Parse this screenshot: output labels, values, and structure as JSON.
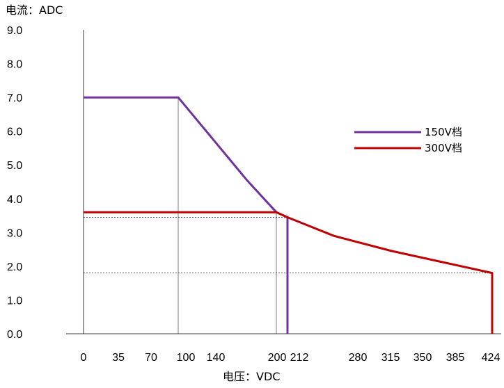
{
  "chart_data": {
    "type": "line",
    "ylabel": "电流：ADC",
    "xlabel": "电压：VDC",
    "xlim": [
      0,
      424
    ],
    "ylim": [
      0,
      9
    ],
    "x_ticks": [
      "0",
      "35",
      "70",
      "100",
      "140",
      "200",
      "212",
      "280",
      "315",
      "350",
      "385",
      "424"
    ],
    "y_ticks": [
      "0.0",
      "1.0",
      "2.0",
      "3.0",
      "4.0",
      "5.0",
      "6.0",
      "7.0",
      "8.0",
      "9.0"
    ],
    "series": [
      {
        "name": "150V档",
        "color": "#7030a0",
        "x": [
          0,
          100,
          140,
          170,
          200,
          212,
          212
        ],
        "y": [
          7.0,
          7.0,
          5.6,
          4.55,
          3.6,
          3.45,
          0.0
        ]
      },
      {
        "name": "300V档",
        "color": "#c00000",
        "x": [
          0,
          200,
          212,
          260,
          320,
          424,
          424
        ],
        "y": [
          3.6,
          3.6,
          3.45,
          2.9,
          2.45,
          1.8,
          0.0
        ]
      }
    ],
    "reference_lines": [
      {
        "x": 100,
        "y": 7.0
      },
      {
        "x": 200,
        "y": 3.6
      },
      {
        "x": 212,
        "y": 3.45
      },
      {
        "x": 424,
        "y": 1.8
      }
    ],
    "legend_position": "right",
    "grid": false
  }
}
